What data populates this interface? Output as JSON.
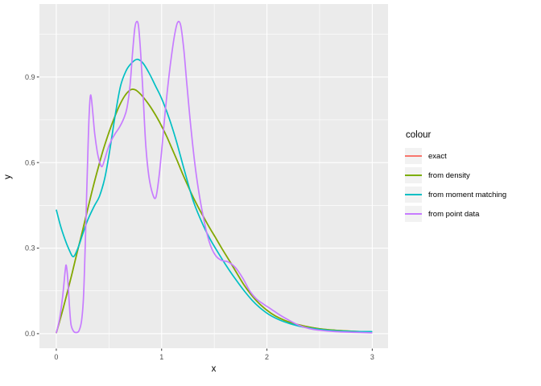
{
  "figure": {
    "background": "#FFFFFF",
    "panel_background": "#EBEBEB",
    "grid_color": "#FFFFFF",
    "tick_color": "#333333",
    "tick_label_color": "#4D4D4D",
    "axis_title_color": "#000000",
    "legend_key_background": "#F2F2F2"
  },
  "chart_data": {
    "type": "line",
    "title": "",
    "xlabel": "x",
    "ylabel": "y",
    "x_ticks": [
      "0",
      "1",
      "2",
      "3"
    ],
    "x_tick_values": [
      0,
      1,
      2,
      3
    ],
    "y_ticks": [
      "0.0",
      "0.3",
      "0.6",
      "0.9"
    ],
    "y_tick_values": [
      0,
      0.3,
      0.6,
      0.9
    ],
    "x_minor_ticks": [
      0.5,
      1.5,
      2.5
    ],
    "y_minor_ticks": [
      0.15,
      0.45,
      0.75,
      1.05
    ],
    "xlim": [
      -0.16,
      3.15
    ],
    "ylim": [
      -0.051,
      1.156
    ],
    "grid": true,
    "legend_title": "colour",
    "legend_position": "right",
    "series": [
      {
        "name": "exact",
        "color": "#F8766D",
        "points": [
          [
            0,
            0.002
          ],
          [
            0.05,
            0.068
          ],
          [
            0.1,
            0.138
          ],
          [
            0.15,
            0.212
          ],
          [
            0.2,
            0.288
          ],
          [
            0.25,
            0.362
          ],
          [
            0.3,
            0.44
          ],
          [
            0.35,
            0.515
          ],
          [
            0.4,
            0.585
          ],
          [
            0.45,
            0.65
          ],
          [
            0.5,
            0.706
          ],
          [
            0.55,
            0.756
          ],
          [
            0.6,
            0.8
          ],
          [
            0.65,
            0.834
          ],
          [
            0.7,
            0.854
          ],
          [
            0.73,
            0.857
          ],
          [
            0.76,
            0.853
          ],
          [
            0.8,
            0.84
          ],
          [
            0.85,
            0.818
          ],
          [
            0.9,
            0.792
          ],
          [
            0.95,
            0.762
          ],
          [
            1.0,
            0.728
          ],
          [
            1.05,
            0.69
          ],
          [
            1.1,
            0.648
          ],
          [
            1.15,
            0.605
          ],
          [
            1.2,
            0.56
          ],
          [
            1.25,
            0.518
          ],
          [
            1.3,
            0.478
          ],
          [
            1.35,
            0.442
          ],
          [
            1.4,
            0.408
          ],
          [
            1.45,
            0.375
          ],
          [
            1.5,
            0.344
          ],
          [
            1.57,
            0.3
          ],
          [
            1.64,
            0.258
          ],
          [
            1.71,
            0.215
          ],
          [
            1.78,
            0.172
          ],
          [
            1.85,
            0.137
          ],
          [
            1.92,
            0.108
          ],
          [
            2.0,
            0.082
          ],
          [
            2.08,
            0.062
          ],
          [
            2.16,
            0.048
          ],
          [
            2.25,
            0.036
          ],
          [
            2.35,
            0.027
          ],
          [
            2.45,
            0.02
          ],
          [
            2.55,
            0.015
          ],
          [
            2.65,
            0.012
          ],
          [
            2.78,
            0.009
          ],
          [
            2.9,
            0.007
          ],
          [
            3.0,
            0.006
          ]
        ]
      },
      {
        "name": "from density",
        "color": "#7CAE00",
        "points": [
          [
            0,
            0.002
          ],
          [
            0.05,
            0.068
          ],
          [
            0.1,
            0.138
          ],
          [
            0.15,
            0.212
          ],
          [
            0.2,
            0.288
          ],
          [
            0.25,
            0.362
          ],
          [
            0.3,
            0.44
          ],
          [
            0.35,
            0.515
          ],
          [
            0.4,
            0.585
          ],
          [
            0.45,
            0.65
          ],
          [
            0.5,
            0.706
          ],
          [
            0.55,
            0.756
          ],
          [
            0.6,
            0.8
          ],
          [
            0.65,
            0.834
          ],
          [
            0.7,
            0.854
          ],
          [
            0.73,
            0.857
          ],
          [
            0.76,
            0.853
          ],
          [
            0.8,
            0.84
          ],
          [
            0.85,
            0.818
          ],
          [
            0.9,
            0.792
          ],
          [
            0.95,
            0.762
          ],
          [
            1.0,
            0.728
          ],
          [
            1.05,
            0.69
          ],
          [
            1.1,
            0.648
          ],
          [
            1.15,
            0.605
          ],
          [
            1.2,
            0.56
          ],
          [
            1.25,
            0.518
          ],
          [
            1.3,
            0.478
          ],
          [
            1.35,
            0.442
          ],
          [
            1.4,
            0.408
          ],
          [
            1.45,
            0.375
          ],
          [
            1.5,
            0.344
          ],
          [
            1.57,
            0.3
          ],
          [
            1.64,
            0.258
          ],
          [
            1.71,
            0.215
          ],
          [
            1.78,
            0.172
          ],
          [
            1.85,
            0.137
          ],
          [
            1.92,
            0.108
          ],
          [
            2.0,
            0.082
          ],
          [
            2.08,
            0.062
          ],
          [
            2.16,
            0.048
          ],
          [
            2.25,
            0.036
          ],
          [
            2.35,
            0.027
          ],
          [
            2.45,
            0.02
          ],
          [
            2.55,
            0.015
          ],
          [
            2.65,
            0.012
          ],
          [
            2.78,
            0.009
          ],
          [
            2.9,
            0.007
          ],
          [
            3.0,
            0.006
          ]
        ]
      },
      {
        "name": "from moment matching",
        "color": "#00BFC4",
        "points": [
          [
            0,
            0.435
          ],
          [
            0.04,
            0.378
          ],
          [
            0.08,
            0.333
          ],
          [
            0.12,
            0.296
          ],
          [
            0.16,
            0.27
          ],
          [
            0.2,
            0.295
          ],
          [
            0.25,
            0.348
          ],
          [
            0.3,
            0.4
          ],
          [
            0.36,
            0.447
          ],
          [
            0.41,
            0.482
          ],
          [
            0.46,
            0.545
          ],
          [
            0.51,
            0.648
          ],
          [
            0.56,
            0.768
          ],
          [
            0.61,
            0.868
          ],
          [
            0.66,
            0.92
          ],
          [
            0.71,
            0.947
          ],
          [
            0.765,
            0.962
          ],
          [
            0.82,
            0.95
          ],
          [
            0.88,
            0.915
          ],
          [
            0.94,
            0.87
          ],
          [
            1.0,
            0.825
          ],
          [
            1.07,
            0.757
          ],
          [
            1.14,
            0.675
          ],
          [
            1.22,
            0.568
          ],
          [
            1.3,
            0.466
          ],
          [
            1.38,
            0.392
          ],
          [
            1.46,
            0.332
          ],
          [
            1.54,
            0.282
          ],
          [
            1.62,
            0.235
          ],
          [
            1.7,
            0.192
          ],
          [
            1.78,
            0.152
          ],
          [
            1.86,
            0.117
          ],
          [
            1.94,
            0.089
          ],
          [
            2.02,
            0.067
          ],
          [
            2.12,
            0.048
          ],
          [
            2.22,
            0.035
          ],
          [
            2.35,
            0.023
          ],
          [
            2.5,
            0.015
          ],
          [
            2.65,
            0.01
          ],
          [
            2.8,
            0.008
          ],
          [
            3.0,
            0.007
          ]
        ]
      },
      {
        "name": "from point data",
        "color": "#C77CFF",
        "points": [
          [
            0,
            0.002
          ],
          [
            0.03,
            0.05
          ],
          [
            0.06,
            0.13
          ],
          [
            0.085,
            0.222
          ],
          [
            0.095,
            0.238
          ],
          [
            0.11,
            0.185
          ],
          [
            0.125,
            0.095
          ],
          [
            0.14,
            0.032
          ],
          [
            0.165,
            0.008
          ],
          [
            0.19,
            0.004
          ],
          [
            0.215,
            0.01
          ],
          [
            0.24,
            0.045
          ],
          [
            0.26,
            0.14
          ],
          [
            0.28,
            0.38
          ],
          [
            0.3,
            0.64
          ],
          [
            0.315,
            0.79
          ],
          [
            0.328,
            0.837
          ],
          [
            0.345,
            0.78
          ],
          [
            0.365,
            0.7
          ],
          [
            0.39,
            0.636
          ],
          [
            0.415,
            0.598
          ],
          [
            0.435,
            0.586
          ],
          [
            0.46,
            0.612
          ],
          [
            0.49,
            0.648
          ],
          [
            0.52,
            0.676
          ],
          [
            0.56,
            0.702
          ],
          [
            0.6,
            0.724
          ],
          [
            0.64,
            0.754
          ],
          [
            0.67,
            0.79
          ],
          [
            0.7,
            0.87
          ],
          [
            0.725,
            0.99
          ],
          [
            0.745,
            1.07
          ],
          [
            0.762,
            1.094
          ],
          [
            0.78,
            1.08
          ],
          [
            0.8,
            0.99
          ],
          [
            0.825,
            0.83
          ],
          [
            0.85,
            0.66
          ],
          [
            0.88,
            0.55
          ],
          [
            0.915,
            0.49
          ],
          [
            0.945,
            0.478
          ],
          [
            0.975,
            0.55
          ],
          [
            1.005,
            0.66
          ],
          [
            1.04,
            0.8
          ],
          [
            1.08,
            0.935
          ],
          [
            1.12,
            1.04
          ],
          [
            1.15,
            1.09
          ],
          [
            1.18,
            1.083
          ],
          [
            1.21,
            1.0
          ],
          [
            1.24,
            0.875
          ],
          [
            1.28,
            0.715
          ],
          [
            1.33,
            0.555
          ],
          [
            1.39,
            0.42
          ],
          [
            1.45,
            0.325
          ],
          [
            1.51,
            0.275
          ],
          [
            1.57,
            0.257
          ],
          [
            1.63,
            0.252
          ],
          [
            1.7,
            0.232
          ],
          [
            1.77,
            0.195
          ],
          [
            1.84,
            0.148
          ],
          [
            1.9,
            0.122
          ],
          [
            1.97,
            0.103
          ],
          [
            2.04,
            0.086
          ],
          [
            2.12,
            0.066
          ],
          [
            2.2,
            0.049
          ],
          [
            2.3,
            0.03
          ],
          [
            2.4,
            0.018
          ],
          [
            2.5,
            0.012
          ],
          [
            2.65,
            0.007
          ],
          [
            2.8,
            0.005
          ],
          [
            3.0,
            0.003
          ]
        ]
      }
    ]
  }
}
